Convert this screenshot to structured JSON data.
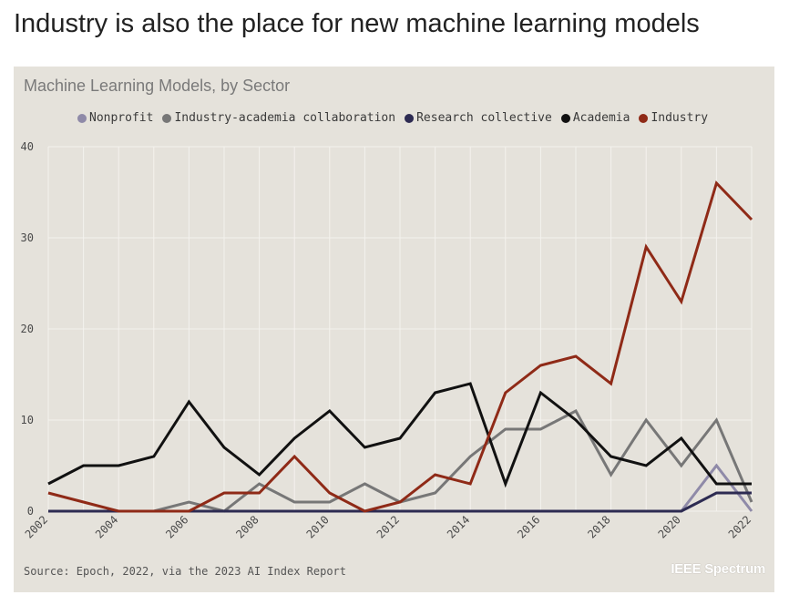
{
  "headline": "Industry is also the place for new machine learning models",
  "brand": "IEEE Spectrum",
  "source": "Source: Epoch, 2022, via the 2023 AI Index Report",
  "chart_data": {
    "type": "line",
    "title": "Machine Learning Models, by Sector",
    "xlabel": "",
    "ylabel": "",
    "ylim": [
      0,
      40
    ],
    "yticks": [
      0,
      10,
      20,
      30,
      40
    ],
    "xlim": [
      2002,
      2022
    ],
    "xticks": [
      2002,
      2004,
      2006,
      2008,
      2010,
      2012,
      2014,
      2016,
      2018,
      2020,
      2022
    ],
    "legend_position": "top",
    "x": [
      2002,
      2003,
      2004,
      2005,
      2006,
      2007,
      2008,
      2009,
      2010,
      2011,
      2012,
      2013,
      2014,
      2015,
      2016,
      2017,
      2018,
      2019,
      2020,
      2021,
      2022
    ],
    "series": [
      {
        "name": "Nonprofit",
        "color": "#8f8aa8",
        "values": [
          0,
          0,
          0,
          0,
          0,
          0,
          0,
          0,
          0,
          0,
          0,
          0,
          0,
          0,
          0,
          0,
          0,
          0,
          0,
          5,
          0
        ]
      },
      {
        "name": "Industry-academia collaboration",
        "color": "#777777",
        "values": [
          0,
          0,
          0,
          0,
          1,
          0,
          3,
          1,
          1,
          3,
          1,
          2,
          6,
          9,
          9,
          11,
          4,
          10,
          5,
          10,
          1
        ]
      },
      {
        "name": "Research collective",
        "color": "#2d2b52",
        "values": [
          0,
          0,
          0,
          0,
          0,
          0,
          0,
          0,
          0,
          0,
          0,
          0,
          0,
          0,
          0,
          0,
          0,
          0,
          0,
          2,
          2
        ]
      },
      {
        "name": "Academia",
        "color": "#111111",
        "values": [
          3,
          5,
          5,
          6,
          12,
          7,
          4,
          8,
          11,
          7,
          8,
          13,
          14,
          3,
          13,
          10,
          6,
          5,
          8,
          3,
          3
        ]
      },
      {
        "name": "Industry",
        "color": "#8f2a17",
        "values": [
          2,
          1,
          0,
          0,
          0,
          2,
          2,
          6,
          2,
          0,
          1,
          4,
          3,
          13,
          16,
          17,
          14,
          29,
          23,
          36,
          32
        ]
      }
    ]
  }
}
